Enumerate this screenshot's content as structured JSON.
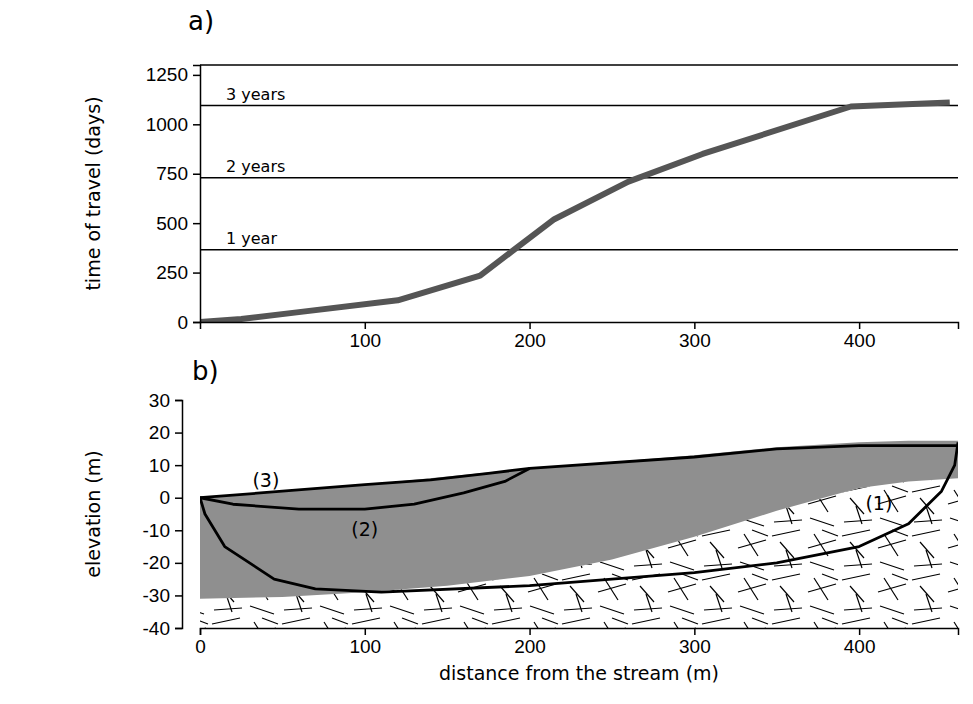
{
  "chart_data": [
    {
      "type": "line",
      "title": "a)",
      "y_label": "time of travel (days)",
      "x": [
        0,
        25,
        60,
        120,
        170,
        215,
        260,
        305,
        395,
        455
      ],
      "values": [
        0,
        15,
        50,
        110,
        235,
        520,
        710,
        850,
        1090,
        1110
      ],
      "color": "#555555",
      "xlim": [
        0,
        460
      ],
      "xticks": [
        100,
        200,
        300,
        400
      ],
      "ylim": [
        0,
        1300
      ],
      "yticks": [
        0,
        250,
        500,
        750,
        1000,
        1250
      ],
      "reference_lines": [
        {
          "value": 365,
          "label": "1 year"
        },
        {
          "value": 730,
          "label": "2 years"
        },
        {
          "value": 1095,
          "label": "3 years"
        }
      ]
    },
    {
      "type": "line",
      "title": "b)",
      "x_label": "distance from the stream (m)",
      "y_label": "elevation (m)",
      "xlim": [
        0,
        460
      ],
      "xticks": [
        0,
        100,
        200,
        300,
        400
      ],
      "ylim": [
        -40,
        30
      ],
      "yticks": [
        -40,
        -30,
        -20,
        -10,
        0,
        10,
        20,
        30
      ],
      "aquifer": {
        "color": "#8f8f8f",
        "x": [
          0,
          50,
          100,
          150,
          200,
          250,
          300,
          350,
          400,
          430,
          460
        ],
        "top": [
          0,
          2,
          4,
          6.5,
          9,
          11,
          13,
          15.5,
          17,
          17.5,
          17.5
        ],
        "bottom": [
          -31,
          -30.5,
          -29,
          -27,
          -24,
          -19,
          -12,
          -4,
          3,
          5,
          6
        ]
      },
      "bedrock": {
        "x": [
          0,
          50,
          100,
          150,
          200,
          250,
          300,
          350,
          400,
          430,
          460
        ],
        "top": [
          -31,
          -30.5,
          -29,
          -27,
          -24,
          -19,
          -12,
          -4,
          3,
          5,
          6
        ]
      },
      "series": [
        {
          "label": "(1)",
          "color": "#000000",
          "label_at": [
            412,
            -2
          ],
          "x": [
            460,
            458,
            450,
            430,
            400,
            350,
            300,
            200,
            110,
            70,
            45,
            15,
            3,
            0
          ],
          "values": [
            17,
            10,
            2,
            -8,
            -15,
            -20,
            -23,
            -27,
            -29,
            -28,
            -25,
            -15,
            -5,
            0
          ]
        },
        {
          "label": "(2)",
          "color": "#000000",
          "label_at": [
            100,
            -10
          ],
          "x": [
            200,
            185,
            160,
            130,
            100,
            60,
            20,
            0
          ],
          "values": [
            9,
            5,
            1.5,
            -2,
            -3.5,
            -3.5,
            -2,
            0
          ]
        },
        {
          "label": "(3)",
          "color": "#000000",
          "label_at": [
            40,
            5
          ],
          "x": [
            0,
            50,
            100,
            140,
            175,
            200,
            300,
            350,
            400,
            460
          ],
          "values": [
            0,
            2,
            4,
            5.5,
            7.5,
            9,
            12.5,
            15,
            16,
            16
          ]
        }
      ]
    }
  ]
}
